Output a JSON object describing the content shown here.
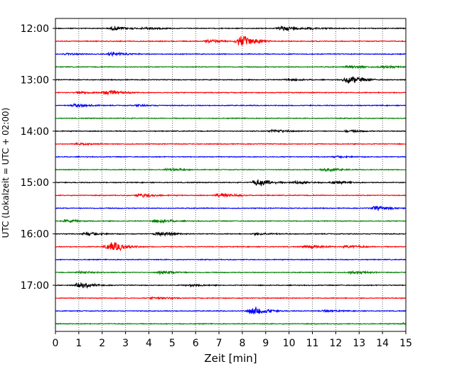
{
  "chart_data": {
    "type": "line",
    "subtype": "helicorder",
    "xlabel": "Zeit  [min]",
    "ylabel": "UTC (Lokalzeit = UTC + 02:00)",
    "xlim": [
      0,
      15
    ],
    "x_ticks": [
      0,
      1,
      2,
      3,
      4,
      5,
      6,
      7,
      8,
      9,
      10,
      11,
      12,
      13,
      14,
      15
    ],
    "y_tick_labels": [
      "12:00",
      "13:00",
      "14:00",
      "15:00",
      "16:00",
      "17:00"
    ],
    "grid": "vertical dotted at each minute",
    "colors_cycle": [
      "#000000",
      "#ff0000",
      "#0000ff",
      "#008000"
    ],
    "traces": [
      {
        "start": "12:00",
        "color": "#000000",
        "events": [
          {
            "t": 2.5,
            "amp": 0.5
          },
          {
            "t": 3.8,
            "amp": 0.3
          },
          {
            "t": 9.7,
            "amp": 0.7
          },
          {
            "t": 10.9,
            "amp": 0.3
          }
        ]
      },
      {
        "start": "12:15",
        "color": "#ff0000",
        "events": [
          {
            "t": 6.5,
            "amp": 0.5
          },
          {
            "t": 7.9,
            "amp": 1.6
          }
        ]
      },
      {
        "start": "12:30",
        "color": "#0000ff",
        "events": [
          {
            "t": 2.4,
            "amp": 0.5
          },
          {
            "t": 0.5,
            "amp": 0.2
          }
        ]
      },
      {
        "start": "12:45",
        "color": "#008000",
        "events": [
          {
            "t": 12.6,
            "amp": 0.4
          },
          {
            "t": 14.0,
            "amp": 0.3
          }
        ]
      },
      {
        "start": "13:00",
        "color": "#000000",
        "events": [
          {
            "t": 12.5,
            "amp": 1.1
          },
          {
            "t": 9.9,
            "amp": 0.3
          }
        ]
      },
      {
        "start": "13:15",
        "color": "#ff0000",
        "events": [
          {
            "t": 2.2,
            "amp": 0.7
          },
          {
            "t": 1.0,
            "amp": 0.3
          }
        ]
      },
      {
        "start": "13:30",
        "color": "#0000ff",
        "events": [
          {
            "t": 0.8,
            "amp": 0.5
          },
          {
            "t": 3.5,
            "amp": 0.2
          }
        ]
      },
      {
        "start": "13:45",
        "color": "#008000",
        "events": []
      },
      {
        "start": "14:00",
        "color": "#000000",
        "events": [
          {
            "t": 9.3,
            "amp": 0.45
          },
          {
            "t": 12.5,
            "amp": 0.25
          }
        ]
      },
      {
        "start": "14:15",
        "color": "#ff0000",
        "events": [
          {
            "t": 0.9,
            "amp": 0.2
          }
        ]
      },
      {
        "start": "14:30",
        "color": "#0000ff",
        "events": [
          {
            "t": 12.0,
            "amp": 0.2
          }
        ]
      },
      {
        "start": "14:45",
        "color": "#008000",
        "events": [
          {
            "t": 4.8,
            "amp": 0.35
          },
          {
            "t": 11.5,
            "amp": 0.45
          }
        ]
      },
      {
        "start": "15:00",
        "color": "#000000",
        "events": [
          {
            "t": 8.6,
            "amp": 1.0
          },
          {
            "t": 10.3,
            "amp": 0.45
          },
          {
            "t": 11.9,
            "amp": 0.35
          }
        ]
      },
      {
        "start": "15:15",
        "color": "#ff0000",
        "events": [
          {
            "t": 3.6,
            "amp": 0.5
          },
          {
            "t": 7.0,
            "amp": 0.65
          }
        ]
      },
      {
        "start": "15:30",
        "color": "#0000ff",
        "events": [
          {
            "t": 13.7,
            "amp": 0.6
          }
        ]
      },
      {
        "start": "15:45",
        "color": "#008000",
        "events": [
          {
            "t": 0.4,
            "amp": 0.35
          },
          {
            "t": 4.3,
            "amp": 0.5
          }
        ]
      },
      {
        "start": "16:00",
        "color": "#000000",
        "events": [
          {
            "t": 4.4,
            "amp": 0.5
          },
          {
            "t": 1.3,
            "amp": 0.4
          },
          {
            "t": 8.6,
            "amp": 0.3
          }
        ]
      },
      {
        "start": "16:15",
        "color": "#ff0000",
        "events": [
          {
            "t": 2.3,
            "amp": 1.5
          },
          {
            "t": 10.8,
            "amp": 0.45
          },
          {
            "t": 12.5,
            "amp": 0.35
          }
        ]
      },
      {
        "start": "16:30",
        "color": "#0000ff",
        "events": []
      },
      {
        "start": "16:45",
        "color": "#008000",
        "events": [
          {
            "t": 4.5,
            "amp": 0.4
          },
          {
            "t": 12.7,
            "amp": 0.35
          },
          {
            "t": 1.1,
            "amp": 0.3
          }
        ]
      },
      {
        "start": "17:00",
        "color": "#000000",
        "events": [
          {
            "t": 1.0,
            "amp": 0.7
          },
          {
            "t": 5.7,
            "amp": 0.3
          }
        ]
      },
      {
        "start": "17:15",
        "color": "#ff0000",
        "events": [
          {
            "t": 4.2,
            "amp": 0.3
          }
        ]
      },
      {
        "start": "17:30",
        "color": "#0000ff",
        "events": [
          {
            "t": 8.4,
            "amp": 1.2
          },
          {
            "t": 11.5,
            "amp": 0.25
          }
        ]
      },
      {
        "start": "17:45",
        "color": "#008000",
        "events": [
          {
            "t": 14.9,
            "amp": 0.25
          }
        ]
      }
    ]
  }
}
